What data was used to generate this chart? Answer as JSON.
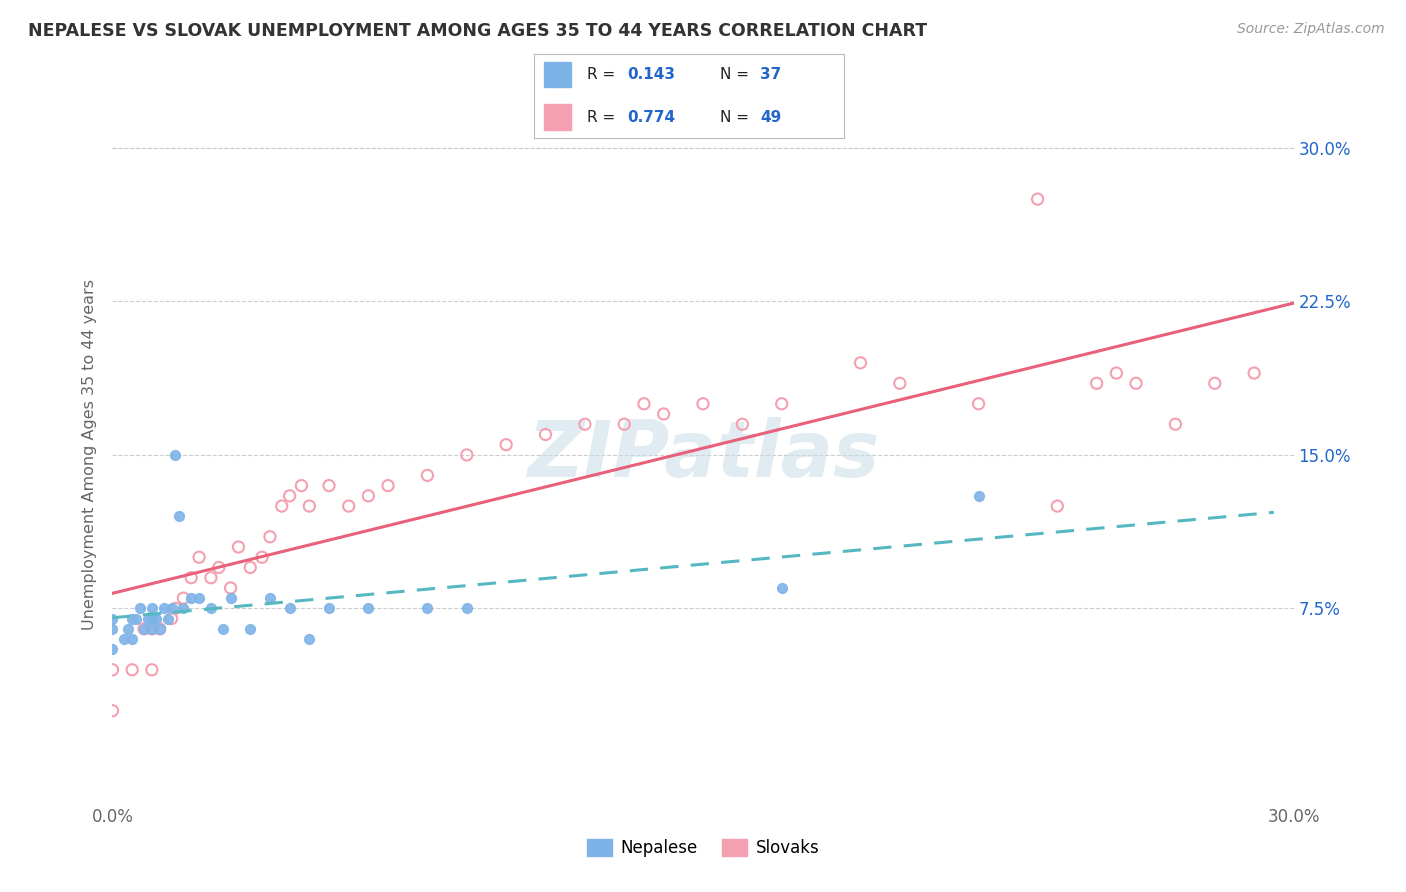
{
  "title": "NEPALESE VS SLOVAK UNEMPLOYMENT AMONG AGES 35 TO 44 YEARS CORRELATION CHART",
  "source": "Source: ZipAtlas.com",
  "ylabel": "Unemployment Among Ages 35 to 44 years",
  "xlim": [
    0.0,
    0.3
  ],
  "ylim": [
    -0.02,
    0.32
  ],
  "ytick_vals": [
    0.075,
    0.15,
    0.225,
    0.3
  ],
  "ytick_labels": [
    "7.5%",
    "15.0%",
    "22.5%",
    "30.0%"
  ],
  "nepalese_R": "0.143",
  "nepalese_N": "37",
  "slovak_R": "0.774",
  "slovak_N": "49",
  "nepalese_color": "#7EB3E8",
  "slovak_color": "#F4A0B0",
  "title_color": "#333333",
  "label_color": "#2255CC",
  "background_color": "#FFFFFF",
  "nepalese_scatter_x": [
    0.0,
    0.0,
    0.0,
    0.003,
    0.004,
    0.005,
    0.005,
    0.006,
    0.007,
    0.008,
    0.009,
    0.01,
    0.01,
    0.01,
    0.011,
    0.012,
    0.013,
    0.014,
    0.015,
    0.016,
    0.017,
    0.018,
    0.02,
    0.022,
    0.025,
    0.028,
    0.03,
    0.035,
    0.04,
    0.045,
    0.05,
    0.055,
    0.065,
    0.08,
    0.09,
    0.17,
    0.22
  ],
  "nepalese_scatter_y": [
    0.055,
    0.065,
    0.07,
    0.06,
    0.065,
    0.06,
    0.07,
    0.07,
    0.075,
    0.065,
    0.07,
    0.065,
    0.07,
    0.075,
    0.07,
    0.065,
    0.075,
    0.07,
    0.075,
    0.15,
    0.12,
    0.075,
    0.08,
    0.08,
    0.075,
    0.065,
    0.08,
    0.065,
    0.08,
    0.075,
    0.06,
    0.075,
    0.075,
    0.075,
    0.075,
    0.085,
    0.13
  ],
  "slovak_scatter_x": [
    0.0,
    0.0,
    0.005,
    0.008,
    0.01,
    0.01,
    0.012,
    0.015,
    0.016,
    0.018,
    0.02,
    0.022,
    0.025,
    0.027,
    0.03,
    0.032,
    0.035,
    0.038,
    0.04,
    0.043,
    0.045,
    0.048,
    0.05,
    0.055,
    0.06,
    0.065,
    0.07,
    0.08,
    0.09,
    0.1,
    0.11,
    0.12,
    0.13,
    0.135,
    0.14,
    0.15,
    0.16,
    0.17,
    0.19,
    0.2,
    0.22,
    0.235,
    0.24,
    0.25,
    0.255,
    0.26,
    0.27,
    0.28,
    0.29
  ],
  "slovak_scatter_y": [
    0.025,
    0.045,
    0.045,
    0.065,
    0.045,
    0.065,
    0.065,
    0.07,
    0.075,
    0.08,
    0.09,
    0.1,
    0.09,
    0.095,
    0.085,
    0.105,
    0.095,
    0.1,
    0.11,
    0.125,
    0.13,
    0.135,
    0.125,
    0.135,
    0.125,
    0.13,
    0.135,
    0.14,
    0.15,
    0.155,
    0.16,
    0.165,
    0.165,
    0.175,
    0.17,
    0.175,
    0.165,
    0.175,
    0.195,
    0.185,
    0.175,
    0.275,
    0.125,
    0.185,
    0.19,
    0.185,
    0.165,
    0.185,
    0.19
  ]
}
